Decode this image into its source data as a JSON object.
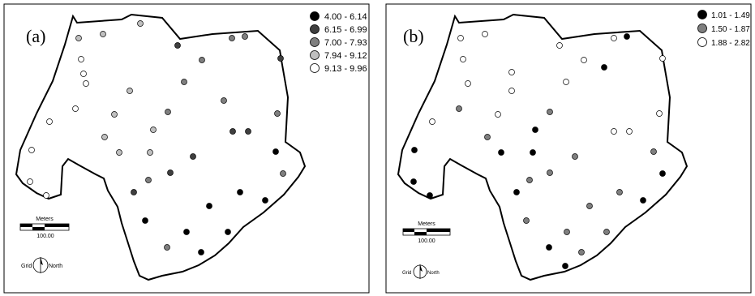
{
  "colors": {
    "class1": "#000000",
    "class2": "#3f3f3f",
    "class3": "#7f7f7f",
    "class4": "#bfbfbf",
    "class5": "#ffffff",
    "outline": "#000000"
  },
  "panels": [
    {
      "label": "(a)",
      "legend": [
        {
          "text": "4.00 - 6.14",
          "fill": "#000000"
        },
        {
          "text": "6.15 - 6.99",
          "fill": "#3f3f3f"
        },
        {
          "text": "7.00 - 7.93",
          "fill": "#7f7f7f"
        },
        {
          "text": "7.94 - 9.12",
          "fill": "#bfbfbf"
        },
        {
          "text": "9.13 - 9.96",
          "fill": "#ffffff"
        }
      ],
      "scalebar": {
        "title": "Meters",
        "value": "100.00"
      },
      "grid": {
        "left": "Grid",
        "right": "North"
      },
      "icon": "north-arrow-icon"
    },
    {
      "label": "(b)",
      "legend": [
        {
          "text": "1.01 - 1.49",
          "fill": "#000000"
        },
        {
          "text": "1.50 - 1.87",
          "fill": "#7f7f7f"
        },
        {
          "text": "1.88 - 2.82",
          "fill": "#ffffff"
        }
      ],
      "scalebar": {
        "title": "Meters",
        "value": "100.00"
      },
      "grid": {
        "left": "Grid",
        "right": "North"
      },
      "icon": "north-arrow-icon"
    }
  ]
}
